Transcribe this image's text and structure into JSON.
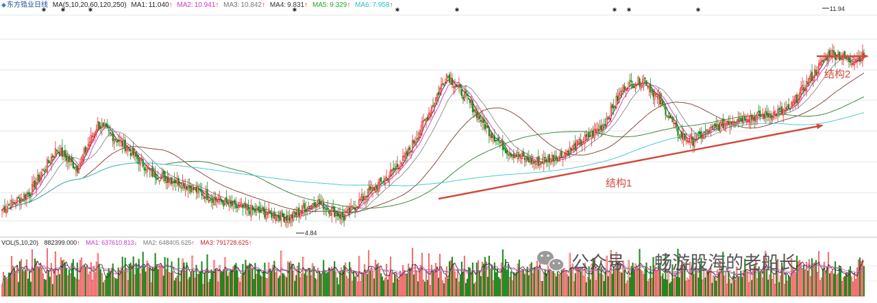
{
  "chart_data": {
    "type": "candlestick",
    "stock_name": "东方锆业",
    "period": "日线",
    "ma_header": "MA(5,10,20,60,120,250)",
    "ma_readouts": [
      {
        "label": "MA1:",
        "value": "11.040",
        "arrow": "↑",
        "color": "#222222"
      },
      {
        "label": "MA2:",
        "value": "10.941",
        "arrow": "↑",
        "color": "#cc33cc"
      },
      {
        "label": "MA3:",
        "value": "10.842",
        "arrow": "↑",
        "color": "#777777"
      },
      {
        "label": "MA4:",
        "value": "9.831",
        "arrow": "↑",
        "color": "#333333"
      },
      {
        "label": "MA5:",
        "value": "9.329",
        "arrow": "↑",
        "color": "#22aa22"
      },
      {
        "label": "MA6:",
        "value": "7.958",
        "arrow": "↑",
        "color": "#22c4c4"
      }
    ],
    "price_high_label": "11.94",
    "price_low_label": "4.84",
    "price_range": [
      4.4,
      12.4
    ],
    "vol_header": "VOL(5,10,20)",
    "vol_readouts": [
      {
        "label": "",
        "value": "882399.000",
        "arrow": "↑",
        "color": "#222222"
      },
      {
        "label": "MA1:",
        "value": "637610.813",
        "arrow": "↓",
        "color": "#cc33cc"
      },
      {
        "label": "MA2:",
        "value": "648405.625",
        "arrow": "↑",
        "color": "#777777"
      },
      {
        "label": "MA3:",
        "value": "791728.625",
        "arrow": "↑",
        "color": "#cc2222"
      }
    ],
    "annotations": [
      {
        "text": "结构1",
        "color": "#d24a3a"
      },
      {
        "text": "结构2",
        "color": "#d24a3a"
      }
    ],
    "colors": {
      "up": "#e8262a",
      "down": "#1e8a1e",
      "ma_short": "#222222",
      "ma_pink": "#cc33cc",
      "ma_gray": "#888888",
      "ma_brown": "#7a3a2a",
      "ma_green": "#2a7a2a",
      "ma_cyan": "#3ac4cc",
      "arrow": "#d24a3a"
    },
    "trend_keypoints": [
      [
        0,
        5.3
      ],
      [
        20,
        5.9
      ],
      [
        40,
        7.5
      ],
      [
        55,
        6.8
      ],
      [
        70,
        8.4
      ],
      [
        90,
        7.6
      ],
      [
        110,
        6.6
      ],
      [
        130,
        6.3
      ],
      [
        150,
        5.8
      ],
      [
        170,
        5.4
      ],
      [
        190,
        5.2
      ],
      [
        210,
        5.0
      ],
      [
        230,
        5.6
      ],
      [
        250,
        5.0
      ],
      [
        265,
        5.8
      ],
      [
        280,
        6.4
      ],
      [
        295,
        7.2
      ],
      [
        310,
        8.6
      ],
      [
        325,
        10.2
      ],
      [
        340,
        9.3
      ],
      [
        355,
        8.2
      ],
      [
        370,
        7.4
      ],
      [
        390,
        7.0
      ],
      [
        410,
        7.3
      ],
      [
        425,
        7.8
      ],
      [
        440,
        8.4
      ],
      [
        455,
        9.8
      ],
      [
        470,
        10.0
      ],
      [
        485,
        8.9
      ],
      [
        495,
        8.0
      ],
      [
        505,
        7.8
      ],
      [
        515,
        8.1
      ],
      [
        535,
        8.6
      ],
      [
        555,
        8.7
      ],
      [
        575,
        8.9
      ],
      [
        590,
        10.0
      ],
      [
        605,
        11.0
      ],
      [
        620,
        10.7
      ],
      [
        630,
        10.9
      ]
    ],
    "watermark": {
      "brand": "公众号",
      "separator": "·",
      "name": "畅游股海的老船长"
    }
  }
}
